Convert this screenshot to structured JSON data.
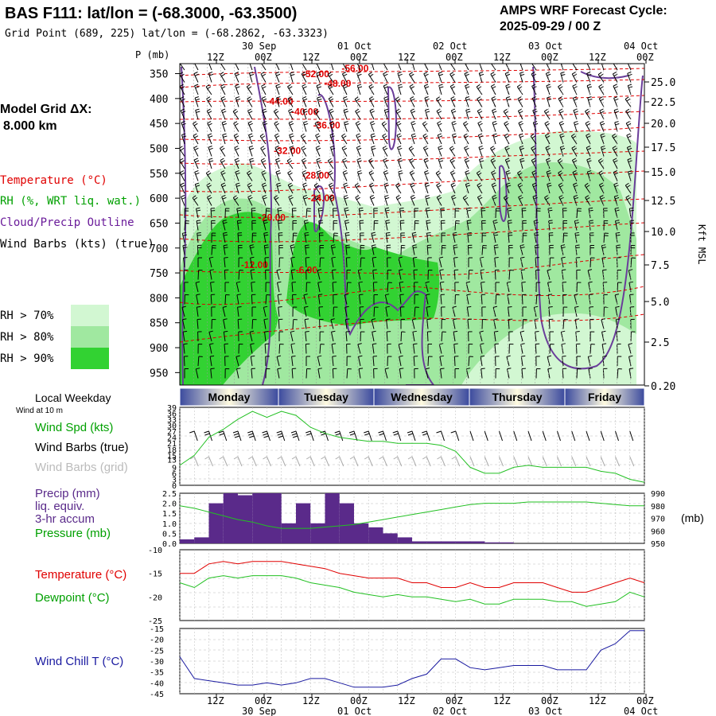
{
  "header": {
    "title": "BAS F111:  lat/lon = (-68.3000, -63.3500)",
    "grid_point": "Grid Point (689, 225) lat/lon = (-68.2862, -63.3323)",
    "cycle_line1": "AMPS WRF Forecast Cycle:",
    "cycle_line2": "2025-09-29 / 00  Z"
  },
  "model": {
    "label_line1": "Model Grid ΔX:",
    "label_line2": " 8.000 km"
  },
  "legend": {
    "temperature": "Temperature (°C)",
    "rh": "RH (%, WRT liq. wat.)",
    "cloud": "Cloud/Precip Outline",
    "wind": "Wind Barbs (kts) (true)",
    "rh70": "RH > 70%",
    "rh80": "RH > 80%",
    "rh90": "RH > 90%",
    "rh70_color": "#d2f7d2",
    "rh80_color": "#a0e8a0",
    "rh90_color": "#32d232"
  },
  "axes": {
    "p_label": "P (mb)",
    "kft_label": "Kft MSL",
    "pressure_ticks": [
      "350",
      "400",
      "450",
      "500",
      "550",
      "600",
      "650",
      "700",
      "750",
      "800",
      "850",
      "900",
      "950"
    ],
    "kft_ticks": [
      "25.0",
      "22.5",
      "20.0",
      "17.5",
      "15.0",
      "12.5",
      "10.0",
      "7.5",
      "5.0",
      "2.5",
      "0.20"
    ],
    "time_ticks": [
      "12Z",
      "00Z",
      "12Z",
      "00Z",
      "12Z",
      "00Z",
      "12Z",
      "00Z",
      "12Z",
      "00Z"
    ],
    "date_ticks": [
      "30 Sep",
      "01 Oct",
      "02 Oct",
      "03 Oct",
      "04 Oct"
    ]
  },
  "weekday": {
    "title": "Local Weekday",
    "wind_at": "Wind at 10 m",
    "days": [
      "Monday",
      "Tuesday",
      "Wednesday",
      "Thursday",
      "Friday"
    ]
  },
  "panel_labels": {
    "wind_spd": "Wind Spd (kts)",
    "wind_true": "Wind Barbs (true)",
    "wind_grid": "Wind Barbs (grid)",
    "precip1": "Precip (mm)",
    "precip2": "liq. equiv.",
    "precip3": "3-hr accum",
    "pressure": "Pressure (mb)",
    "pressure_unit": "(mb)",
    "temperature": "Temperature (°C)",
    "dewpoint": "Dewpoint (°C)",
    "windchill": "Wind Chill T (°C)"
  },
  "chart_data": [
    {
      "type": "line",
      "title": "Cross-section temperature isotherm labels",
      "ylabel": "P (mb)",
      "ylim": [
        350,
        975
      ],
      "annotations": [
        {
          "text": "-56.00",
          "t": 1.48,
          "p": 346
        },
        {
          "text": "-52.00",
          "t": 1.12,
          "p": 357
        },
        {
          "text": "-48.00",
          "t": 1.32,
          "p": 376
        },
        {
          "text": "-44.00",
          "t": 0.79,
          "p": 412
        },
        {
          "text": "-40.00",
          "t": 1.02,
          "p": 433
        },
        {
          "text": "-36.00",
          "t": 1.22,
          "p": 460
        },
        {
          "text": "-32.00",
          "t": 0.86,
          "p": 511
        },
        {
          "text": "-28.00",
          "t": 1.12,
          "p": 561
        },
        {
          "text": "-24.00",
          "t": 1.17,
          "p": 606
        },
        {
          "text": "-20.00",
          "t": 0.72,
          "p": 645
        },
        {
          "text": "-12.00",
          "t": 0.56,
          "p": 740
        },
        {
          "text": "-6.00",
          "t": 1.06,
          "p": 751
        }
      ]
    },
    {
      "type": "line",
      "title": "Wind Spd (kts)",
      "ylim": [
        0,
        39
      ],
      "yticks": [
        0,
        3,
        6,
        9,
        13,
        15,
        18,
        21,
        24,
        27,
        30,
        33,
        36,
        39
      ],
      "x_days": [
        0.0,
        0.125,
        0.25,
        0.375,
        0.5,
        0.625,
        0.75,
        0.875,
        1.0,
        1.125,
        1.25,
        1.375,
        1.5,
        1.625,
        1.75,
        1.875,
        2.0,
        2.125,
        2.25,
        2.375,
        2.5,
        2.625,
        2.75,
        2.875,
        3.0,
        3.125,
        3.25,
        3.375,
        3.5,
        3.625,
        3.75,
        3.875,
        4.0
      ],
      "series": [
        {
          "name": "Wind Spd (kts)",
          "values": [
            10,
            15,
            24,
            28,
            33,
            37,
            34,
            37,
            35,
            29,
            26,
            24,
            23,
            22,
            22,
            21,
            21,
            21,
            20,
            17,
            9,
            6,
            6,
            9,
            10,
            9,
            9,
            9,
            9,
            7,
            6,
            3,
            1.5
          ]
        }
      ]
    },
    {
      "type": "bar",
      "title": "Precip (mm) 3-hr accum / Pressure (mb)",
      "ylim": [
        0,
        2.5
      ],
      "yticks": [
        "0.0",
        "0.5",
        "1.0",
        "1.5",
        "2.0",
        "2.5"
      ],
      "pressure_ticks": [
        "950",
        "960",
        "970",
        "980",
        "990"
      ],
      "precip_values": [
        0.2,
        0.3,
        2.0,
        2.5,
        2.4,
        2.5,
        2.5,
        1.0,
        2.0,
        1.0,
        2.5,
        2.0,
        1.0,
        0.8,
        0.5,
        0.3,
        0.1,
        0.1,
        0.1,
        0.1,
        0.1,
        0.05,
        0.05,
        0,
        0,
        0,
        0,
        0,
        0,
        0,
        0,
        0
      ],
      "series": [
        {
          "name": "Pressure (mb)",
          "values": [
            980,
            978,
            975,
            972,
            969,
            967,
            964,
            962,
            962,
            962,
            963,
            964,
            965,
            967,
            969,
            971,
            973,
            975,
            977,
            979,
            981,
            982,
            982,
            982,
            983,
            983,
            983,
            983,
            983,
            982,
            981,
            980,
            980
          ]
        }
      ]
    },
    {
      "type": "line",
      "title": "Temperature / Dewpoint (°C)",
      "ylim": [
        -25,
        -10
      ],
      "yticks": [
        "-10",
        "-15",
        "-20",
        "-25"
      ],
      "series": [
        {
          "name": "Temperature (°C)",
          "values": [
            -15,
            -15,
            -13,
            -12.5,
            -13,
            -12.5,
            -12.5,
            -12.5,
            -13,
            -13.5,
            -14,
            -15,
            -15.5,
            -16,
            -16,
            -16,
            -17,
            -17,
            -18,
            -18,
            -17,
            -18,
            -18,
            -17,
            -17,
            -17,
            -18,
            -19,
            -19,
            -18,
            -17,
            -16,
            -17
          ]
        },
        {
          "name": "Dewpoint (°C)",
          "values": [
            -17,
            -18,
            -16,
            -15.5,
            -16,
            -15.5,
            -15.5,
            -15.5,
            -16,
            -17,
            -17.5,
            -18,
            -19,
            -19.5,
            -20,
            -19.5,
            -20,
            -20,
            -20.5,
            -21,
            -20.5,
            -21.5,
            -21.5,
            -20.5,
            -20.5,
            -20.5,
            -21,
            -21,
            -22,
            -21.5,
            -21,
            -19,
            -20
          ]
        }
      ]
    },
    {
      "type": "line",
      "title": "Wind Chill T (°C)",
      "ylim": [
        -45,
        -15
      ],
      "yticks": [
        "-15",
        "-20",
        "-25",
        "-30",
        "-35",
        "-40",
        "-45"
      ],
      "series": [
        {
          "name": "Wind Chill T (°C)",
          "values": [
            -28,
            -38,
            -39,
            -40,
            -41,
            -41,
            -40,
            -41,
            -40,
            -38,
            -38,
            -40,
            -42,
            -42,
            -42,
            -41,
            -38,
            -36,
            -29,
            -29,
            -33,
            -34,
            -33,
            -32,
            -32,
            -32,
            -34,
            -34,
            -34,
            -25,
            -22,
            -16,
            -16
          ]
        }
      ]
    }
  ]
}
